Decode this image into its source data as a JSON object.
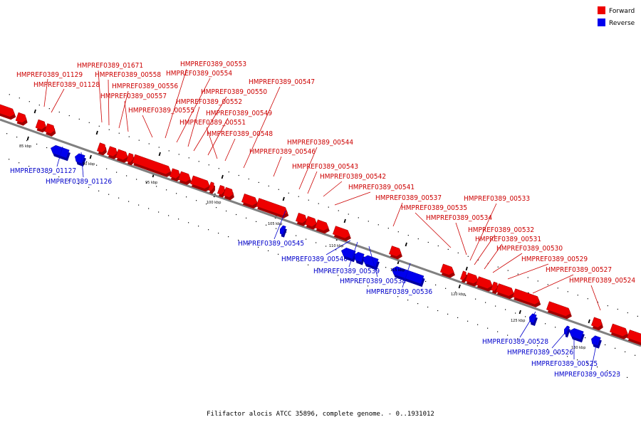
{
  "caption": "Filifactor alocis ATCC 35896, complete genome. - 0..1931012",
  "colors": {
    "forward": "#ee0000",
    "forward_dark": "#a00000",
    "reverse": "#0000ee",
    "reverse_dark": "#0000a0",
    "backbone": "#808080"
  },
  "legend": {
    "forward_label": "Forward",
    "reverse_label": "Reverse"
  },
  "ticks": [
    "85 kbp",
    "90 kbp",
    "95 kbp",
    "100 kbp",
    "105 kbp",
    "110 kbp",
    "115 kbp",
    "120 kbp",
    "125 kbp",
    "130 kbp"
  ],
  "genes_forward": [
    "HMPREF0389_01129",
    "HMPREF0389_01128",
    "HMPREF0389_01671",
    "HMPREF0389_00558",
    "HMPREF0389_00556",
    "HMPREF0389_00557",
    "HMPREF0389_00555",
    "HMPREF0389_00553",
    "HMPREF0389_00554",
    "HMPREF0389_00550",
    "HMPREF0389_00552",
    "HMPREF0389_00549",
    "HMPREF0389_00551",
    "HMPREF0389_00548",
    "HMPREF0389_00547",
    "HMPREF0389_00546",
    "HMPREF0389_00544",
    "HMPREF0389_00543",
    "HMPREF0389_00542",
    "HMPREF0389_00541",
    "HMPREF0389_00537",
    "HMPREF0389_00535",
    "HMPREF0389_00534",
    "HMPREF0389_00533",
    "HMPREF0389_00532",
    "HMPREF0389_00531",
    "HMPREF0389_00530",
    "HMPREF0389_00529",
    "HMPREF0389_00527",
    "HMPREF0389_00524"
  ],
  "genes_reverse": [
    "HMPREF0389_01127",
    "HMPREF0389_01126",
    "HMPREF0389_00545",
    "HMPREF0389_00540",
    "HMPREF0389_00539",
    "HMPREF0389_00538",
    "HMPREF0389_00536",
    "HMPREF0389_00528",
    "HMPREF0389_00526",
    "HMPREF0389_00525",
    "HMPREF0389_00523"
  ]
}
